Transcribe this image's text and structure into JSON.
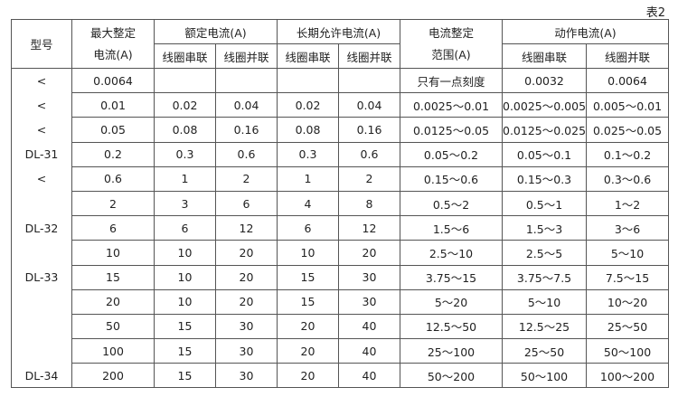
{
  "caption": "表2",
  "header": {
    "model": "型号",
    "max_current_line1": "最大整定",
    "max_current_line2": "电流(A)",
    "rated_current": "额定电流(A)",
    "long_term_current": "长期允许电流(A)",
    "setting_range_line1": "电流整定",
    "setting_range_line2": "范围(A)",
    "operating_current": "动作电流(A)",
    "series": "线圈串联",
    "parallel": "线圈并联"
  },
  "rows": [
    {
      "model": "<",
      "max": "0.0064",
      "rated_s": "",
      "rated_p": "",
      "long_s": "",
      "long_p": "",
      "range": "只有一点刻度",
      "op_s": "0.0032",
      "op_p": "0.0064"
    },
    {
      "model": "<",
      "max": "0.01",
      "rated_s": "0.02",
      "rated_p": "0.04",
      "long_s": "0.02",
      "long_p": "0.04",
      "range": "0.0025～0.01",
      "op_s": "0.0025～0.005",
      "op_p": "0.005～0.01"
    },
    {
      "model": "<",
      "max": "0.05",
      "rated_s": "0.08",
      "rated_p": "0.16",
      "long_s": "0.08",
      "long_p": "0.16",
      "range": "0.0125～0.05",
      "op_s": "0.0125～0.025",
      "op_p": "0.025～0.05"
    },
    {
      "model": "DL-31",
      "max": "0.2",
      "rated_s": "0.3",
      "rated_p": "0.6",
      "long_s": "0.3",
      "long_p": "0.6",
      "range": "0.05～0.2",
      "op_s": "0.05～0.1",
      "op_p": "0.1～0.2"
    },
    {
      "model": "<",
      "max": "0.6",
      "rated_s": "1",
      "rated_p": "2",
      "long_s": "1",
      "long_p": "2",
      "range": "0.15～0.6",
      "op_s": "0.15～0.3",
      "op_p": "0.3～0.6"
    },
    {
      "model": "",
      "max": "2",
      "rated_s": "3",
      "rated_p": "6",
      "long_s": "4",
      "long_p": "8",
      "range": "0.5～2",
      "op_s": "0.5～1",
      "op_p": "1～2"
    },
    {
      "model": "DL-32",
      "max": "6",
      "rated_s": "6",
      "rated_p": "12",
      "long_s": "6",
      "long_p": "12",
      "range": "1.5～6",
      "op_s": "1.5～3",
      "op_p": "3～6"
    },
    {
      "model": "",
      "max": "10",
      "rated_s": "10",
      "rated_p": "20",
      "long_s": "10",
      "long_p": "20",
      "range": "2.5～10",
      "op_s": "2.5～5",
      "op_p": "5～10"
    },
    {
      "model": "DL-33",
      "max": "15",
      "rated_s": "10",
      "rated_p": "20",
      "long_s": "15",
      "long_p": "30",
      "range": "3.75～15",
      "op_s": "3.75～7.5",
      "op_p": "7.5～15"
    },
    {
      "model": "",
      "max": "20",
      "rated_s": "10",
      "rated_p": "20",
      "long_s": "15",
      "long_p": "30",
      "range": "5～20",
      "op_s": "5～10",
      "op_p": "10～20"
    },
    {
      "model": "",
      "max": "50",
      "rated_s": "15",
      "rated_p": "30",
      "long_s": "20",
      "long_p": "40",
      "range": "12.5～50",
      "op_s": "12.5～25",
      "op_p": "25～50"
    },
    {
      "model": "",
      "max": "100",
      "rated_s": "15",
      "rated_p": "30",
      "long_s": "20",
      "long_p": "40",
      "range": "25～100",
      "op_s": "25～50",
      "op_p": "50～100"
    },
    {
      "model": "DL-34",
      "max": "200",
      "rated_s": "15",
      "rated_p": "30",
      "long_s": "20",
      "long_p": "40",
      "range": "50～200",
      "op_s": "50～100",
      "op_p": "100～200"
    }
  ]
}
